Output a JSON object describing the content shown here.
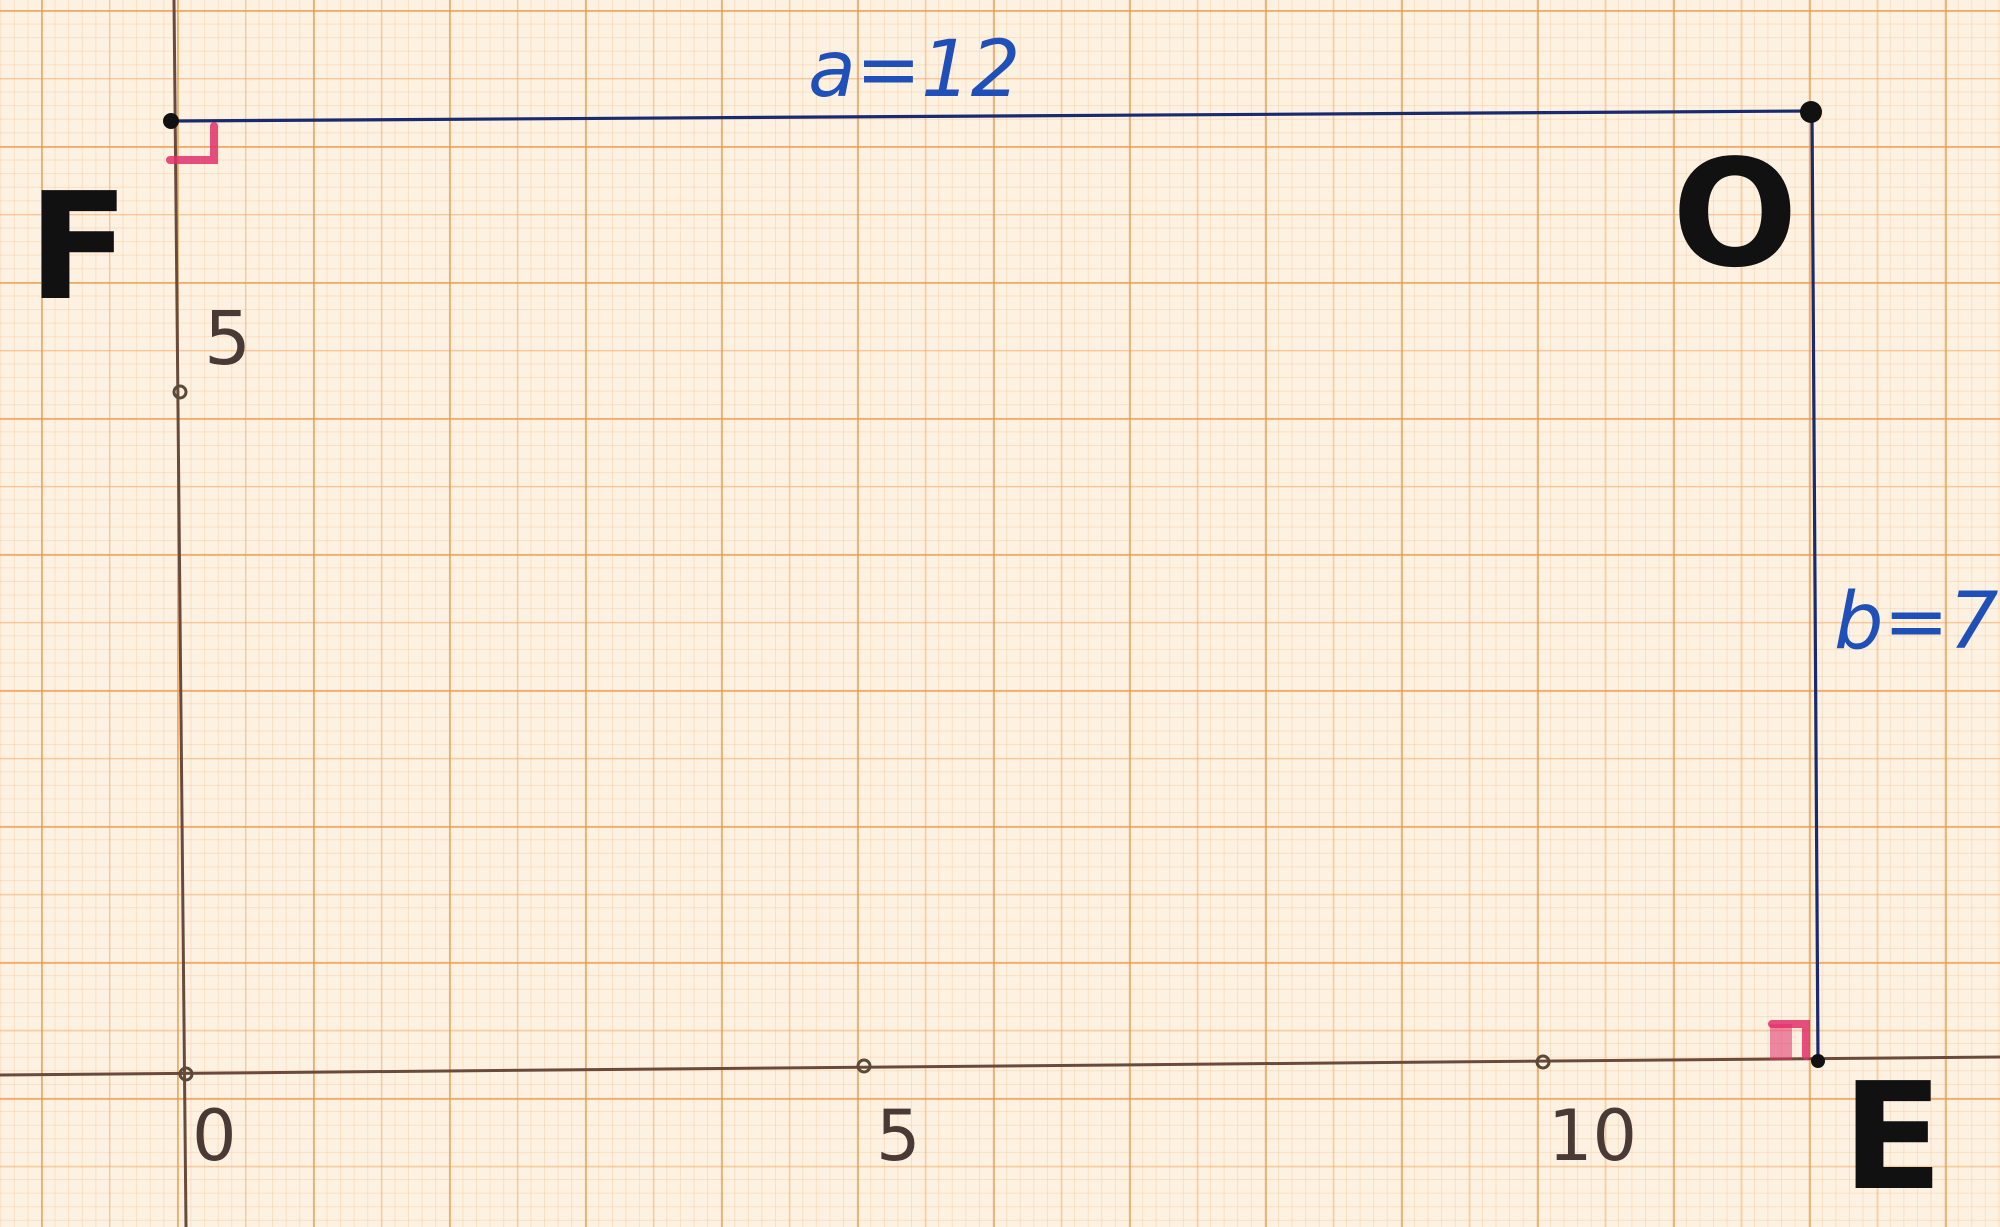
{
  "labels": {
    "corner_top_left": "F",
    "corner_top_right": "O",
    "corner_bottom_right": "E",
    "top_side": "a=12",
    "right_side": "b=7"
  },
  "axis_ticks": {
    "x": [
      "0",
      "5",
      "10"
    ],
    "y": [
      "5"
    ]
  },
  "colors": {
    "rectangle": "#1a2a6e",
    "side_labels": "#1f4fb8",
    "axes": "#6a4a3a",
    "corner_labels": "#111111",
    "right_angle_marks": "#e0306a",
    "grid": "#e8964a"
  }
}
